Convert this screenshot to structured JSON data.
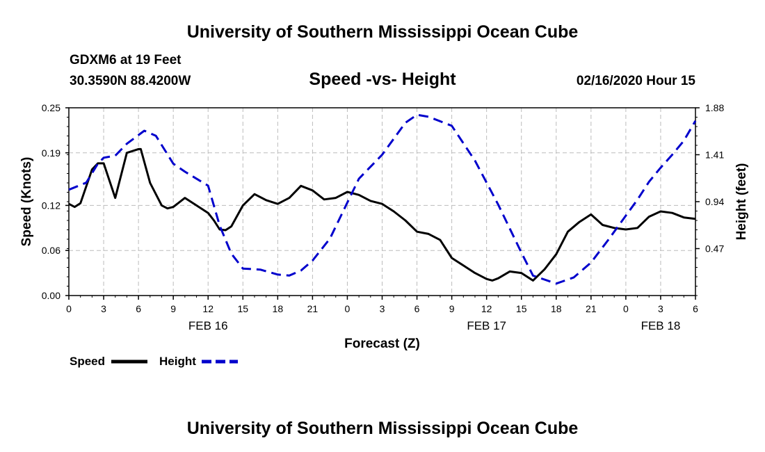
{
  "header": {
    "title_top": "University of Southern Mississippi Ocean Cube",
    "title_bottom": "University of Southern Mississippi Ocean Cube",
    "station": "GDXM6 at 19 Feet",
    "location": "30.3590N 88.4200W",
    "datetime": "02/16/2020 Hour 15"
  },
  "colors": {
    "speed": "#000000",
    "height": "#0000cc",
    "grid": "#bbbbbb"
  },
  "chart_data": {
    "type": "line",
    "title": "Speed -vs- Height",
    "xlabel": "Forecast (Z)",
    "ylabel": "Speed (Knots)",
    "y2label": "Height (feet)",
    "xlim": [
      0,
      54
    ],
    "ylim": [
      0,
      0.25
    ],
    "y2lim": [
      0,
      1.88
    ],
    "yticks": [
      0.0,
      0.06,
      0.12,
      0.19,
      0.25
    ],
    "ytick_labels": [
      "0.00",
      "0.06",
      "0.12",
      "0.19",
      "0.25"
    ],
    "y2ticks": [
      0.47,
      0.94,
      1.41,
      1.88
    ],
    "y2tick_labels": [
      "0.47",
      "0.94",
      "1.41",
      "1.88"
    ],
    "x_tick_positions": [
      0,
      3,
      6,
      9,
      12,
      15,
      18,
      21,
      24,
      27,
      30,
      33,
      36,
      39,
      42,
      45,
      48,
      51,
      54
    ],
    "x_tick_labels": [
      "0",
      "3",
      "6",
      "9",
      "12",
      "15",
      "18",
      "21",
      "0",
      "3",
      "6",
      "9",
      "12",
      "15",
      "18",
      "21",
      "0",
      "3",
      "6"
    ],
    "date_labels": [
      {
        "x": 12,
        "label": "FEB 16"
      },
      {
        "x": 36,
        "label": "FEB 17"
      },
      {
        "x": 51,
        "label": "FEB 18"
      }
    ],
    "grid": true,
    "legend": "bottom-left",
    "series": [
      {
        "name": "Speed",
        "axis": "left",
        "style": "solid",
        "x": [
          0,
          0.5,
          1,
          2,
          2.5,
          3,
          4,
          5,
          6,
          6.2,
          7,
          8,
          8.5,
          9,
          10,
          11,
          12,
          12.5,
          13,
          13.5,
          14,
          15,
          16,
          17,
          18,
          19,
          20,
          21,
          22,
          23,
          24,
          25,
          26,
          27,
          28,
          29,
          30,
          31,
          32,
          33,
          34,
          35,
          36,
          36.5,
          37,
          38,
          39,
          40,
          41,
          42,
          43,
          44,
          45,
          46,
          47,
          48,
          49,
          50,
          51,
          52,
          53,
          54
        ],
        "values": [
          0.122,
          0.118,
          0.123,
          0.168,
          0.176,
          0.176,
          0.13,
          0.19,
          0.195,
          0.195,
          0.15,
          0.12,
          0.116,
          0.118,
          0.13,
          0.12,
          0.11,
          0.1,
          0.088,
          0.087,
          0.092,
          0.12,
          0.135,
          0.127,
          0.122,
          0.13,
          0.146,
          0.14,
          0.128,
          0.13,
          0.138,
          0.134,
          0.126,
          0.122,
          0.112,
          0.1,
          0.085,
          0.082,
          0.074,
          0.05,
          0.04,
          0.03,
          0.022,
          0.02,
          0.023,
          0.032,
          0.03,
          0.02,
          0.035,
          0.055,
          0.085,
          0.098,
          0.108,
          0.094,
          0.09,
          0.088,
          0.09,
          0.105,
          0.112,
          0.11,
          0.104,
          0.102
        ]
      },
      {
        "name": "Height",
        "axis": "right",
        "style": "dashed",
        "x": [
          0,
          1.5,
          2.5,
          3,
          4,
          5,
          6.5,
          7.5,
          9,
          10,
          12,
          13,
          14,
          15,
          16.5,
          18,
          19,
          20,
          21,
          22.5,
          24,
          25,
          27,
          29,
          30,
          31,
          33,
          35,
          37,
          39,
          40,
          42,
          43.5,
          45,
          46.5,
          48,
          49,
          50,
          51,
          52,
          53,
          54
        ],
        "values": [
          1.06,
          1.13,
          1.32,
          1.38,
          1.4,
          1.52,
          1.65,
          1.6,
          1.32,
          1.24,
          1.1,
          0.7,
          0.42,
          0.27,
          0.26,
          0.21,
          0.2,
          0.25,
          0.35,
          0.57,
          0.93,
          1.17,
          1.41,
          1.73,
          1.81,
          1.79,
          1.7,
          1.35,
          0.91,
          0.43,
          0.2,
          0.12,
          0.18,
          0.33,
          0.56,
          0.8,
          0.96,
          1.14,
          1.28,
          1.41,
          1.55,
          1.75
        ]
      }
    ]
  }
}
